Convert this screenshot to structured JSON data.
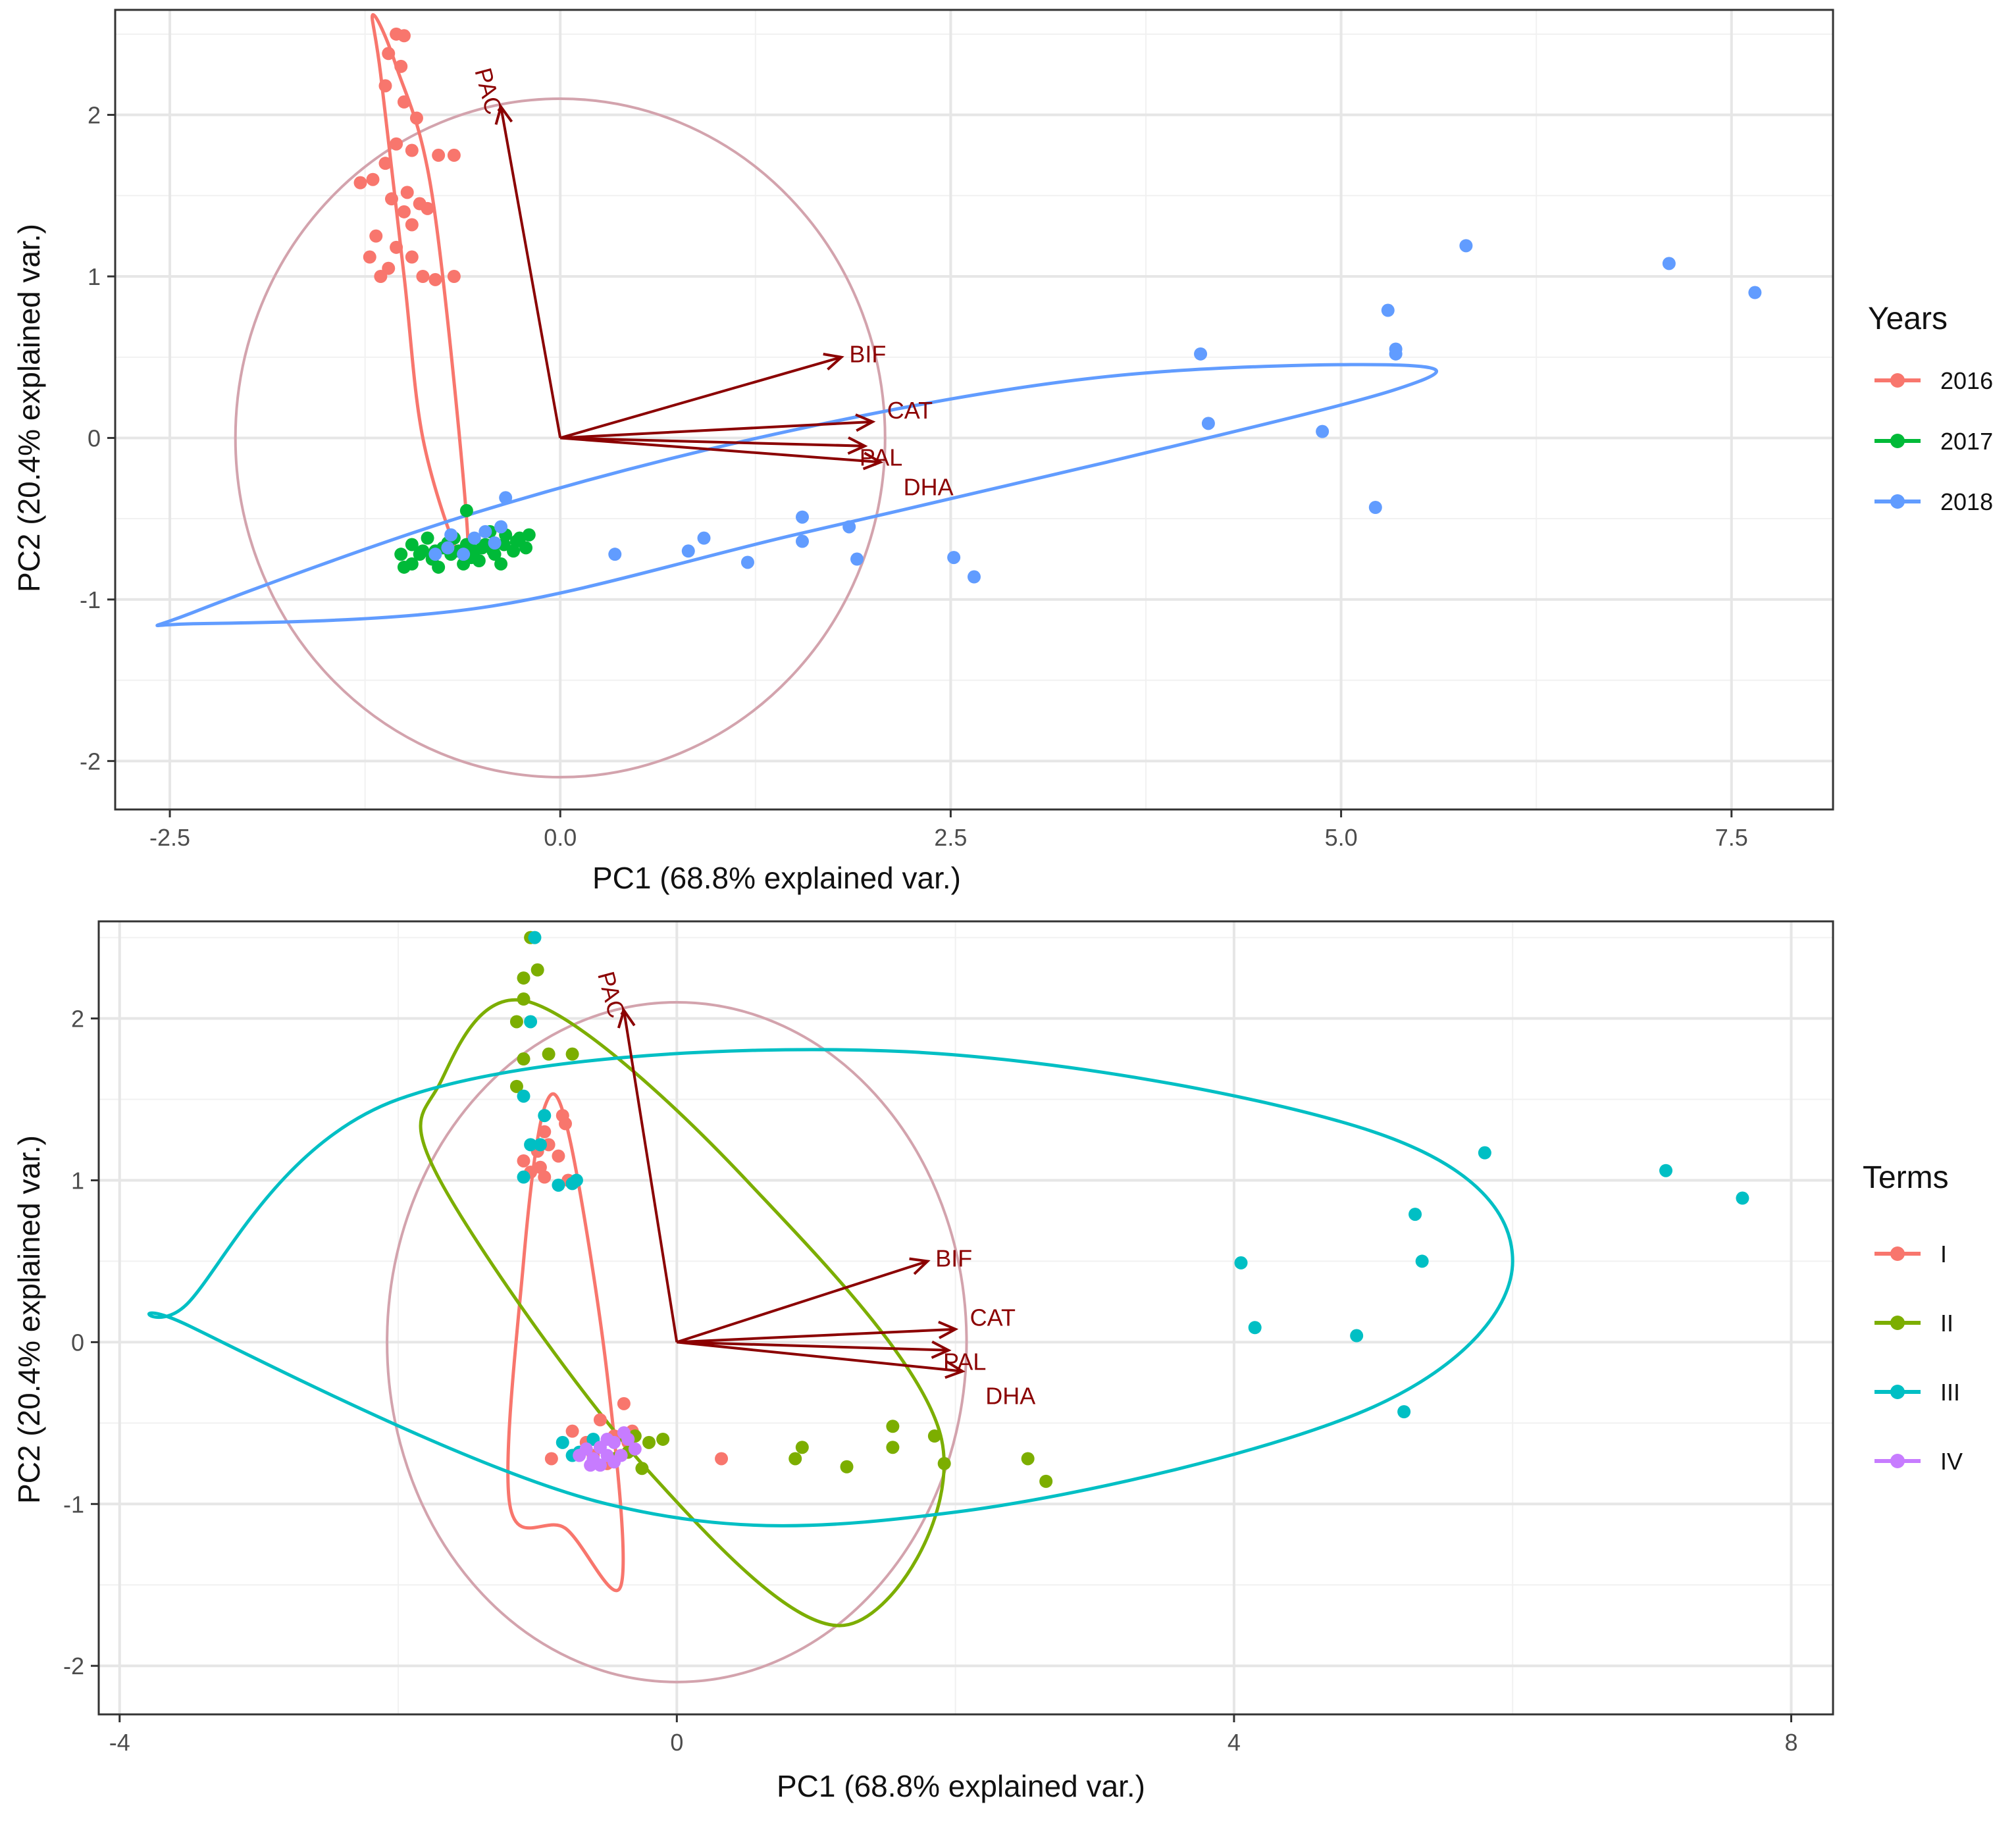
{
  "chart_data": [
    {
      "type": "scatter",
      "subtype": "pca-biplot",
      "xlabel": "PC1 (68.8% explained var.)",
      "ylabel": "PC2 (20.4% explained var.)",
      "xlim": [
        -2.85,
        8.15
      ],
      "ylim": [
        -2.3,
        2.65
      ],
      "xticks": [
        -2.5,
        0.0,
        2.5,
        5.0,
        7.5
      ],
      "xtick_labels": [
        "-2.5",
        "0.0",
        "2.5",
        "5.0",
        "7.5"
      ],
      "yticks": [
        -2,
        -1,
        0,
        1,
        2
      ],
      "ytick_labels": [
        "-2",
        "-1",
        "0",
        "1",
        "2"
      ],
      "grid": true,
      "legend": {
        "title": "Years",
        "position": "right"
      },
      "colors": {
        "2016": "#f8766d",
        "2017": "#00ba38",
        "2018": "#619cff",
        "arrow": "#8b0000",
        "circle": "#d3a3ad"
      },
      "series": [
        {
          "name": "2016",
          "color": "#f8766d",
          "points": [
            [
              -1.05,
              2.5
            ],
            [
              -1.0,
              2.49
            ],
            [
              -1.1,
              2.38
            ],
            [
              -1.02,
              2.3
            ],
            [
              -1.12,
              2.18
            ],
            [
              -1.0,
              2.08
            ],
            [
              -0.92,
              1.98
            ],
            [
              -1.05,
              1.82
            ],
            [
              -0.95,
              1.78
            ],
            [
              -0.78,
              1.75
            ],
            [
              -0.68,
              1.75
            ],
            [
              -1.12,
              1.7
            ],
            [
              -1.2,
              1.6
            ],
            [
              -1.28,
              1.58
            ],
            [
              -0.98,
              1.52
            ],
            [
              -1.08,
              1.48
            ],
            [
              -0.9,
              1.45
            ],
            [
              -0.85,
              1.42
            ],
            [
              -1.0,
              1.4
            ],
            [
              -0.95,
              1.32
            ],
            [
              -1.18,
              1.25
            ],
            [
              -1.05,
              1.18
            ],
            [
              -0.95,
              1.12
            ],
            [
              -1.22,
              1.12
            ],
            [
              -1.1,
              1.05
            ],
            [
              -0.88,
              1.0
            ],
            [
              -0.68,
              1.0
            ],
            [
              -1.15,
              1.0
            ],
            [
              -0.8,
              0.98
            ]
          ]
        },
        {
          "name": "2017",
          "color": "#00ba38",
          "points": [
            [
              -1.02,
              -0.72
            ],
            [
              -0.95,
              -0.66
            ],
            [
              -0.88,
              -0.7
            ],
            [
              -0.82,
              -0.75
            ],
            [
              -0.75,
              -0.68
            ],
            [
              -0.7,
              -0.72
            ],
            [
              -0.62,
              -0.78
            ],
            [
              -0.55,
              -0.7
            ],
            [
              -0.48,
              -0.66
            ],
            [
              -0.42,
              -0.72
            ],
            [
              -0.35,
              -0.6
            ],
            [
              -0.28,
              -0.64
            ],
            [
              -0.2,
              -0.6
            ],
            [
              -0.95,
              -0.78
            ],
            [
              -0.85,
              -0.62
            ],
            [
              -0.78,
              -0.8
            ],
            [
              -0.68,
              -0.62
            ],
            [
              -0.6,
              -0.66
            ],
            [
              -0.52,
              -0.76
            ],
            [
              -0.45,
              -0.58
            ],
            [
              -0.38,
              -0.78
            ],
            [
              -0.3,
              -0.7
            ],
            [
              -0.22,
              -0.68
            ],
            [
              -0.6,
              -0.45
            ],
            [
              -1.0,
              -0.8
            ],
            [
              -0.9,
              -0.72
            ],
            [
              -0.8,
              -0.7
            ],
            [
              -0.72,
              -0.65
            ],
            [
              -0.65,
              -0.7
            ],
            [
              -0.57,
              -0.74
            ],
            [
              -0.5,
              -0.68
            ],
            [
              -0.43,
              -0.7
            ],
            [
              -0.36,
              -0.66
            ],
            [
              -0.26,
              -0.62
            ]
          ]
        },
        {
          "name": "2018",
          "color": "#619cff",
          "points": [
            [
              -0.35,
              -0.37
            ],
            [
              -0.8,
              -0.72
            ],
            [
              -0.72,
              -0.68
            ],
            [
              -0.62,
              -0.72
            ],
            [
              -0.55,
              -0.62
            ],
            [
              -0.48,
              -0.58
            ],
            [
              -0.42,
              -0.65
            ],
            [
              -0.38,
              -0.55
            ],
            [
              -0.7,
              -0.6
            ],
            [
              0.35,
              -0.72
            ],
            [
              0.82,
              -0.7
            ],
            [
              0.92,
              -0.62
            ],
            [
              1.2,
              -0.77
            ],
            [
              1.55,
              -0.49
            ],
            [
              1.55,
              -0.64
            ],
            [
              1.85,
              -0.55
            ],
            [
              1.9,
              -0.75
            ],
            [
              2.52,
              -0.74
            ],
            [
              2.65,
              -0.86
            ],
            [
              4.1,
              0.52
            ],
            [
              4.15,
              0.09
            ],
            [
              4.88,
              0.04
            ],
            [
              5.22,
              -0.43
            ],
            [
              5.3,
              0.79
            ],
            [
              5.35,
              0.55
            ],
            [
              5.35,
              0.52
            ],
            [
              5.8,
              1.19
            ],
            [
              7.1,
              1.08
            ],
            [
              7.65,
              0.9
            ]
          ]
        }
      ],
      "ellipses": [
        {
          "series": "2016",
          "points": [
            [
              -0.88,
              0.0
            ],
            [
              -1.0,
              1.0
            ],
            [
              -1.15,
              2.25
            ],
            [
              -1.2,
              2.62
            ],
            [
              -1.05,
              2.3
            ],
            [
              -0.82,
              1.5
            ],
            [
              -0.6,
              -0.5
            ],
            [
              -0.65,
              -0.72
            ]
          ]
        },
        {
          "series": "2018",
          "points": [
            [
              -2.35,
              -1.08
            ],
            [
              -0.5,
              -0.45
            ],
            [
              1.5,
              0.05
            ],
            [
              3.5,
              0.38
            ],
            [
              5.4,
              0.45
            ],
            [
              5.35,
              0.3
            ],
            [
              3.5,
              -0.15
            ],
            [
              1.5,
              -0.6
            ],
            [
              -0.5,
              -1.05
            ],
            [
              -2.35,
              -1.15
            ]
          ]
        }
      ],
      "correlation_circle": {
        "center": [
          0,
          0
        ],
        "rx": 2.08,
        "ry": 2.1
      },
      "loadings": [
        {
          "label": "PAC",
          "x": -0.38,
          "y": 2.05
        },
        {
          "label": "BIF",
          "x": 1.8,
          "y": 0.5
        },
        {
          "label": "CAT",
          "x": 2.0,
          "y": 0.1
        },
        {
          "label": "PAL",
          "x": 1.95,
          "y": -0.05
        },
        {
          "label": "DHA",
          "x": 2.05,
          "y": -0.15
        }
      ]
    },
    {
      "type": "scatter",
      "subtype": "pca-biplot",
      "xlabel": "PC1 (68.8% explained var.)",
      "ylabel": "PC2 (20.4% explained var.)",
      "xlim": [
        -4.15,
        8.3
      ],
      "ylim": [
        -2.3,
        2.6
      ],
      "xticks": [
        -4,
        0,
        4,
        8
      ],
      "xtick_labels": [
        "-4",
        "0",
        "4",
        "8"
      ],
      "yticks": [
        -2,
        -1,
        0,
        1,
        2
      ],
      "ytick_labels": [
        "-2",
        "-1",
        "0",
        "1",
        "2"
      ],
      "grid": true,
      "legend": {
        "title": "Terms",
        "position": "right"
      },
      "colors": {
        "I": "#f8766d",
        "II": "#7cae00",
        "III": "#00bfc4",
        "IV": "#c77cff",
        "arrow": "#8b0000",
        "circle": "#d3a3ad"
      },
      "series": [
        {
          "name": "I",
          "color": "#f8766d",
          "points": [
            [
              -1.1,
              1.12
            ],
            [
              -1.0,
              1.18
            ],
            [
              -0.95,
              1.3
            ],
            [
              -0.82,
              1.4
            ],
            [
              -1.05,
              1.05
            ],
            [
              -0.98,
              1.08
            ],
            [
              -0.92,
              1.22
            ],
            [
              -0.85,
              1.15
            ],
            [
              -0.78,
              1.0
            ],
            [
              -0.95,
              1.02
            ],
            [
              -0.8,
              1.35
            ],
            [
              -0.38,
              -0.38
            ],
            [
              -0.55,
              -0.48
            ],
            [
              -0.75,
              -0.55
            ],
            [
              -0.65,
              -0.62
            ],
            [
              -0.45,
              -0.58
            ],
            [
              -0.32,
              -0.55
            ],
            [
              -0.9,
              -0.72
            ],
            [
              -0.6,
              -0.7
            ],
            [
              -0.5,
              -0.75
            ],
            [
              -0.35,
              -0.62
            ],
            [
              0.32,
              -0.72
            ]
          ]
        },
        {
          "name": "II",
          "color": "#7cae00",
          "points": [
            [
              -1.05,
              2.5
            ],
            [
              -1.1,
              2.25
            ],
            [
              -1.0,
              2.3
            ],
            [
              -1.1,
              2.12
            ],
            [
              -1.15,
              1.98
            ],
            [
              -1.1,
              1.75
            ],
            [
              -0.92,
              1.78
            ],
            [
              -0.75,
              1.78
            ],
            [
              -1.15,
              1.58
            ],
            [
              -0.3,
              -0.58
            ],
            [
              -0.2,
              -0.62
            ],
            [
              -0.1,
              -0.6
            ],
            [
              -0.35,
              -0.68
            ],
            [
              -0.45,
              -0.72
            ],
            [
              -0.25,
              -0.78
            ],
            [
              0.85,
              -0.72
            ],
            [
              0.9,
              -0.65
            ],
            [
              1.22,
              -0.77
            ],
            [
              1.55,
              -0.52
            ],
            [
              1.55,
              -0.65
            ],
            [
              1.85,
              -0.58
            ],
            [
              1.92,
              -0.75
            ],
            [
              2.52,
              -0.72
            ],
            [
              2.65,
              -0.86
            ]
          ]
        },
        {
          "name": "III",
          "color": "#00bfc4",
          "points": [
            [
              -1.02,
              2.5
            ],
            [
              -1.05,
              1.98
            ],
            [
              -1.1,
              1.52
            ],
            [
              -0.95,
              1.4
            ],
            [
              -0.98,
              1.22
            ],
            [
              -1.05,
              1.22
            ],
            [
              -1.1,
              1.02
            ],
            [
              -0.85,
              0.97
            ],
            [
              -0.75,
              0.98
            ],
            [
              -0.72,
              1.0
            ],
            [
              -0.82,
              -0.62
            ],
            [
              -0.75,
              -0.7
            ],
            [
              -0.7,
              -0.68
            ],
            [
              -0.6,
              -0.6
            ],
            [
              4.05,
              0.49
            ],
            [
              4.15,
              0.09
            ],
            [
              4.88,
              0.04
            ],
            [
              5.22,
              -0.43
            ],
            [
              5.3,
              0.79
            ],
            [
              5.35,
              0.5
            ],
            [
              5.8,
              1.17
            ],
            [
              7.1,
              1.06
            ],
            [
              7.65,
              0.89
            ]
          ]
        },
        {
          "name": "IV",
          "color": "#c77cff",
          "points": [
            [
              -0.7,
              -0.7
            ],
            [
              -0.65,
              -0.66
            ],
            [
              -0.6,
              -0.72
            ],
            [
              -0.55,
              -0.65
            ],
            [
              -0.5,
              -0.7
            ],
            [
              -0.45,
              -0.62
            ],
            [
              -0.4,
              -0.7
            ],
            [
              -0.35,
              -0.6
            ],
            [
              -0.3,
              -0.66
            ],
            [
              -0.55,
              -0.76
            ],
            [
              -0.45,
              -0.74
            ],
            [
              -0.38,
              -0.56
            ],
            [
              -0.62,
              -0.76
            ],
            [
              -0.5,
              -0.6
            ]
          ]
        }
      ],
      "ellipses": [
        {
          "series": "I",
          "points": [
            [
              -1.2,
              -1.0
            ],
            [
              -1.1,
              0.5
            ],
            [
              -0.95,
              1.45
            ],
            [
              -0.78,
              1.3
            ],
            [
              -0.5,
              -0.2
            ],
            [
              -0.4,
              -1.5
            ],
            [
              -0.8,
              -1.15
            ]
          ]
        },
        {
          "series": "II",
          "points": [
            [
              -1.7,
              1.6
            ],
            [
              -1.05,
              2.1
            ],
            [
              0.5,
              1.0
            ],
            [
              1.9,
              -0.6
            ],
            [
              1.2,
              -1.75
            ],
            [
              -0.2,
              -0.8
            ],
            [
              -1.7,
              1.0
            ]
          ]
        },
        {
          "series": "III",
          "points": [
            [
              -3.5,
              0.25
            ],
            [
              -2.0,
              1.5
            ],
            [
              1.5,
              1.8
            ],
            [
              5.0,
              1.3
            ],
            [
              6.0,
              0.5
            ],
            [
              5.0,
              -0.4
            ],
            [
              2.0,
              -1.05
            ],
            [
              -0.5,
              -1.0
            ],
            [
              -3.5,
              0.1
            ]
          ]
        }
      ],
      "correlation_circle": {
        "center": [
          0,
          0
        ],
        "rx": 2.08,
        "ry": 2.1
      },
      "loadings": [
        {
          "label": "PAC",
          "x": -0.38,
          "y": 2.05
        },
        {
          "label": "BIF",
          "x": 1.8,
          "y": 0.5
        },
        {
          "label": "CAT",
          "x": 2.0,
          "y": 0.08
        },
        {
          "label": "PAL",
          "x": 1.95,
          "y": -0.05
        },
        {
          "label": "DHA",
          "x": 2.05,
          "y": -0.18
        }
      ]
    }
  ]
}
